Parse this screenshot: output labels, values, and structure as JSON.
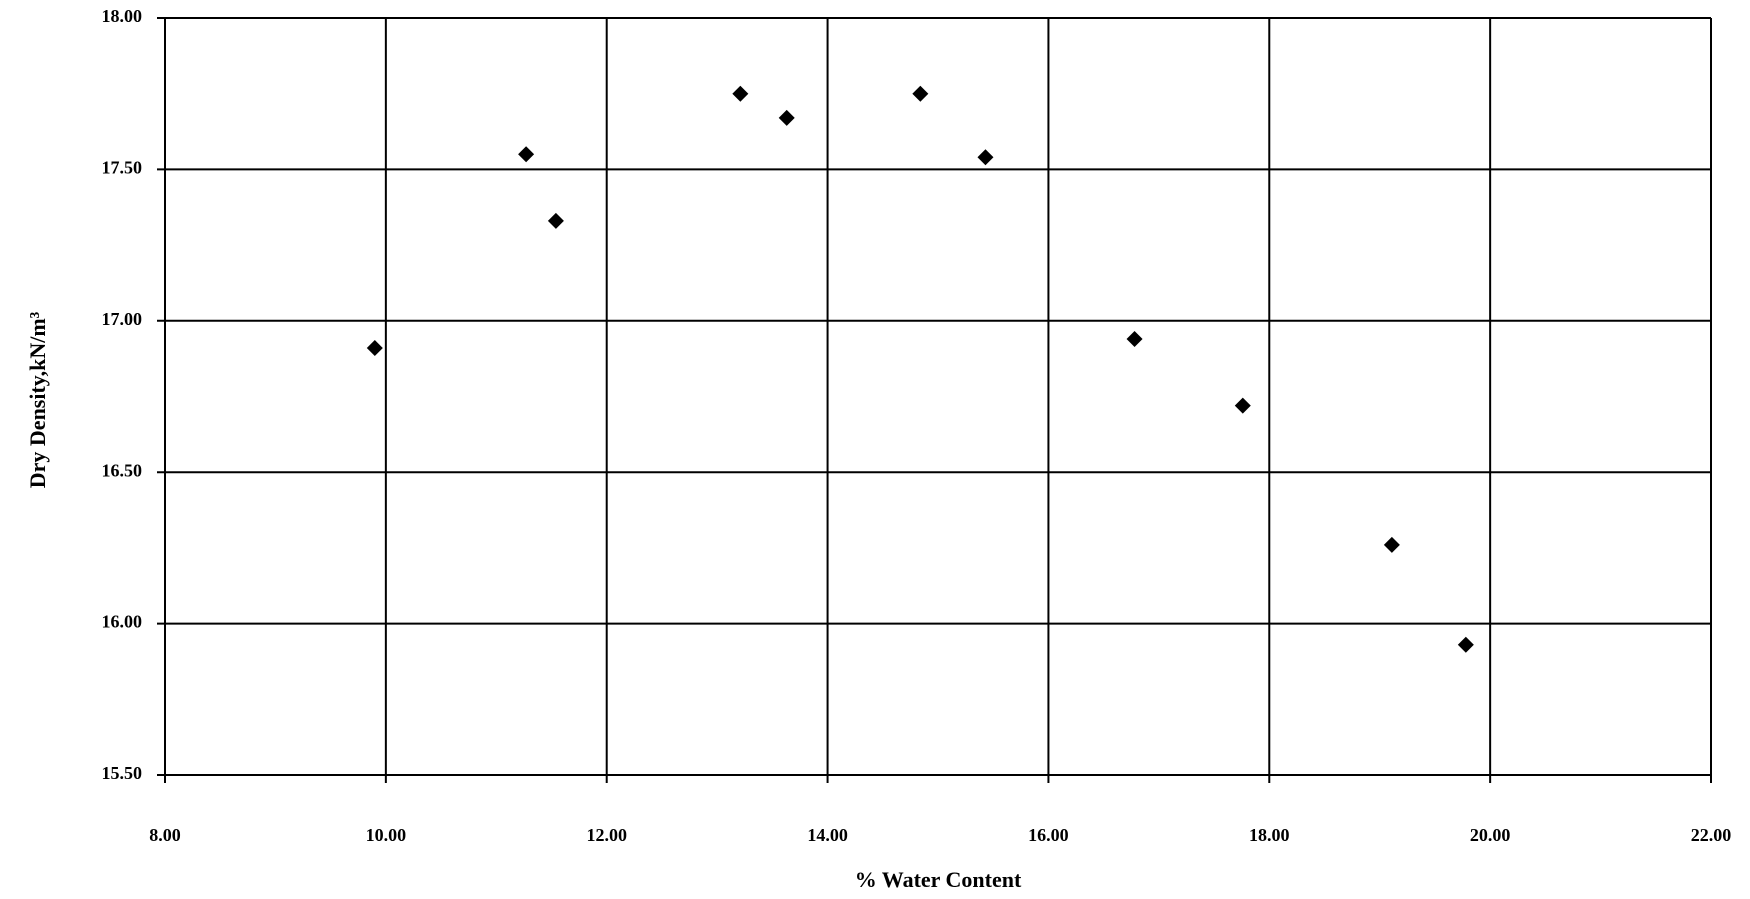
{
  "chart_data": {
    "type": "scatter",
    "x_label": "% Water Content",
    "y_label": "Dry Density,kN/m³",
    "color": "#000000",
    "grid": true,
    "xlim": [
      8,
      22
    ],
    "ylim": [
      15.5,
      18
    ],
    "xticks": [
      {
        "value": 8,
        "label": "8.00"
      },
      {
        "value": 10,
        "label": "10.00"
      },
      {
        "value": 12,
        "label": "12.00"
      },
      {
        "value": 14,
        "label": "14.00"
      },
      {
        "value": 16,
        "label": "16.00"
      },
      {
        "value": 18,
        "label": "18.00"
      },
      {
        "value": 20,
        "label": "20.00"
      },
      {
        "value": 22,
        "label": "22.00"
      }
    ],
    "yticks": [
      {
        "value": 15.5,
        "label": "15.50"
      },
      {
        "value": 16,
        "label": "16.00"
      },
      {
        "value": 16.5,
        "label": "16.50"
      },
      {
        "value": 17,
        "label": "17.00"
      },
      {
        "value": 17.5,
        "label": "17.50"
      },
      {
        "value": 18,
        "label": "18.00"
      }
    ],
    "x": [
      9.9,
      11.27,
      11.54,
      13.21,
      13.63,
      14.84,
      15.43,
      16.78,
      17.76,
      19.11,
      19.78
    ],
    "values": [
      16.91,
      17.55,
      17.33,
      17.75,
      17.67,
      17.75,
      17.54,
      16.94,
      16.72,
      16.26,
      15.93
    ]
  }
}
